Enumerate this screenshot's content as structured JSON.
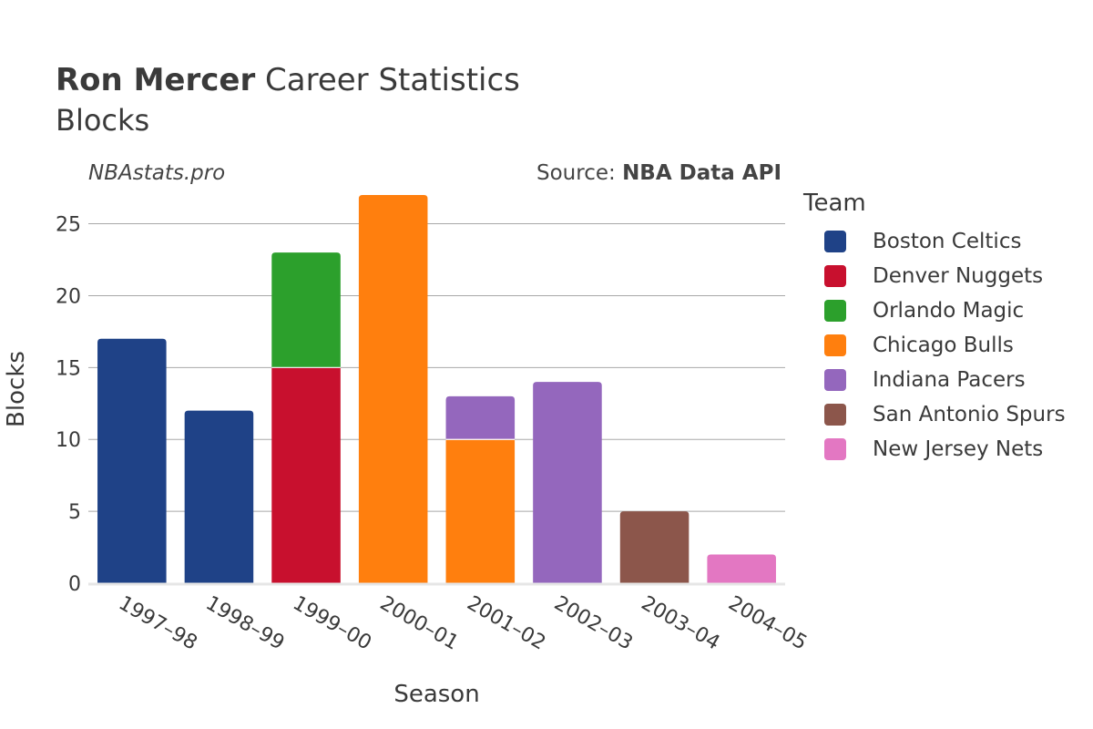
{
  "header": {
    "title_bold": "Ron Mercer",
    "title_rest": " Career Statistics",
    "subtitle": "Blocks",
    "watermark": "NBAstats.pro",
    "source_prefix": "Source: ",
    "source_name": "NBA Data API"
  },
  "chart_data": {
    "type": "bar",
    "stacked": true,
    "title": "Ron Mercer Career Statistics",
    "subtitle": "Blocks",
    "xlabel": "Season",
    "ylabel": "Blocks",
    "ylim": [
      0,
      27
    ],
    "yticks": [
      0,
      5,
      10,
      15,
      20,
      25
    ],
    "grid": true,
    "legend_title": "Team",
    "legend_position": "right",
    "categories": [
      "1997–98",
      "1998–99",
      "1999–00",
      "2000–01",
      "2001–02",
      "2002–03",
      "2003–04",
      "2004–05"
    ],
    "series": [
      {
        "name": "Boston Celtics",
        "color": "#1f4287",
        "values": [
          17,
          12,
          0,
          0,
          0,
          0,
          0,
          0
        ]
      },
      {
        "name": "Denver Nuggets",
        "color": "#c8102e",
        "values": [
          0,
          0,
          15,
          0,
          0,
          0,
          0,
          0
        ]
      },
      {
        "name": "Orlando Magic",
        "color": "#2ca02c",
        "values": [
          0,
          0,
          8,
          0,
          0,
          0,
          0,
          0
        ]
      },
      {
        "name": "Chicago Bulls",
        "color": "#ff7f0e",
        "values": [
          0,
          0,
          0,
          27,
          10,
          0,
          0,
          0
        ]
      },
      {
        "name": "Indiana Pacers",
        "color": "#9467bd",
        "values": [
          0,
          0,
          0,
          0,
          3,
          14,
          0,
          0
        ]
      },
      {
        "name": "San Antonio Spurs",
        "color": "#8c564b",
        "values": [
          0,
          0,
          0,
          0,
          0,
          0,
          5,
          0
        ]
      },
      {
        "name": "New Jersey Nets",
        "color": "#e377c2",
        "values": [
          0,
          0,
          0,
          0,
          0,
          0,
          0,
          2
        ]
      }
    ]
  }
}
